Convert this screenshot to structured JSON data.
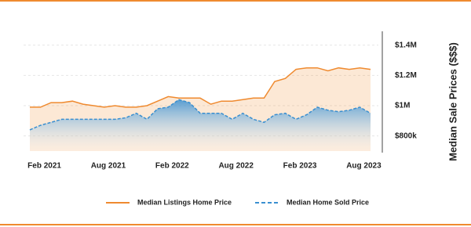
{
  "chart_data": {
    "type": "line",
    "y_axis_label": "Median Sale Prices ($$$)",
    "categories": [
      null,
      "Feb 2021",
      null,
      null,
      null,
      null,
      null,
      "Aug 2021",
      null,
      null,
      null,
      null,
      null,
      "Feb 2022",
      null,
      null,
      null,
      null,
      null,
      "Aug 2022",
      null,
      null,
      null,
      null,
      null,
      "Feb 2023",
      null,
      null,
      null,
      null,
      null,
      "Aug 2023",
      null
    ],
    "series": [
      {
        "name": "Median Listings Home Price",
        "color": "#ef8a2f",
        "dashed": false,
        "values": [
          990000,
          990000,
          1020000,
          1020000,
          1030000,
          1010000,
          1000000,
          990000,
          1000000,
          990000,
          990000,
          1000000,
          1030000,
          1060000,
          1050000,
          1050000,
          1050000,
          1010000,
          1030000,
          1030000,
          1040000,
          1050000,
          1050000,
          1160000,
          1180000,
          1240000,
          1250000,
          1250000,
          1230000,
          1250000,
          1240000,
          1250000,
          1240000
        ]
      },
      {
        "name": "Median Home Sold Price",
        "color": "#3a8fd0",
        "dashed": true,
        "values": [
          840000,
          870000,
          890000,
          910000,
          910000,
          910000,
          910000,
          910000,
          910000,
          920000,
          950000,
          910000,
          980000,
          990000,
          1040000,
          1020000,
          950000,
          950000,
          950000,
          910000,
          950000,
          910000,
          890000,
          940000,
          950000,
          910000,
          940000,
          990000,
          970000,
          960000,
          970000,
          990000,
          950000
        ]
      }
    ],
    "ylim": [
      700000,
      1450000
    ],
    "yticks": [
      {
        "value": 800000,
        "label": "$800k"
      },
      {
        "value": 1000000,
        "label": "$1M"
      },
      {
        "value": 1200000,
        "label": "$1.2M"
      },
      {
        "value": 1400000,
        "label": "$1.4M"
      }
    ],
    "grid": true
  }
}
